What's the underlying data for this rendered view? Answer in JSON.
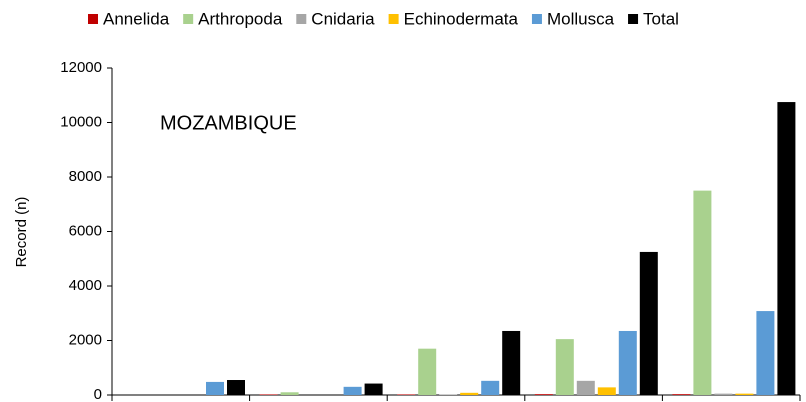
{
  "chart_data": {
    "type": "bar",
    "annotation": "MOZAMBIQUE",
    "ylabel": "Record (n)",
    "categories": [
      null,
      null,
      null,
      null,
      null
    ],
    "series": [
      {
        "name": "Annelida",
        "color": "#c00000",
        "values": [
          0,
          20,
          20,
          30,
          30
        ]
      },
      {
        "name": "Arthropoda",
        "color": "#a9d18e",
        "values": [
          0,
          100,
          1700,
          2050,
          7500
        ]
      },
      {
        "name": "Cnidaria",
        "color": "#a6a6a6",
        "values": [
          0,
          0,
          20,
          520,
          50
        ]
      },
      {
        "name": "Echinodermata",
        "color": "#ffc000",
        "values": [
          0,
          0,
          80,
          280,
          50
        ]
      },
      {
        "name": "Mollusca",
        "color": "#5b9bd5",
        "values": [
          480,
          300,
          520,
          2350,
          3080
        ]
      },
      {
        "name": "Total",
        "color": "#000000",
        "values": [
          550,
          420,
          2350,
          5250,
          10750
        ]
      }
    ],
    "ylim": [
      0,
      12000
    ],
    "yticks": [
      0,
      2000,
      4000,
      6000,
      8000,
      10000,
      12000
    ],
    "grid": false
  }
}
